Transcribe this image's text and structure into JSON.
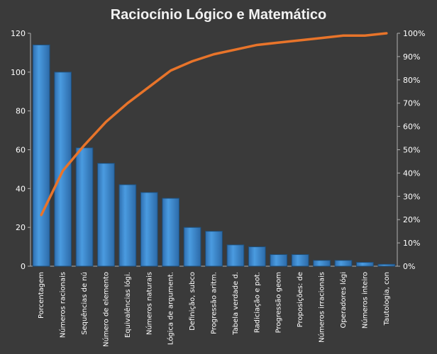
{
  "chart_data": {
    "type": "bar",
    "title": "Raciocínio  Lógico  e  Matemático",
    "categories": [
      "Porcentagem",
      "Números racionais",
      "Sequências de nú",
      "Número de elemento",
      "Equivalências lógi.",
      "Números naturais",
      "Lógica de argument.",
      "Definição, subco",
      "Progressão aritm.",
      "Tabela verdade d.",
      "Radiciação e pot.",
      "Progressão geom",
      "Proposições: de",
      "Números irracionais",
      "Operadores lógi",
      "Números inteiro",
      "Tautologia, con"
    ],
    "series": [
      {
        "values": [
          114,
          100,
          61,
          53,
          42,
          38,
          35,
          20,
          18,
          11,
          10,
          6,
          6,
          3,
          3,
          2,
          1
        ]
      },
      {
        "values": [
          22,
          41,
          52,
          62,
          70,
          77,
          84,
          88,
          91,
          93,
          95,
          96,
          97,
          98,
          99,
          99,
          100
        ],
        "axis": "secondary"
      }
    ],
    "ylim": [
      0,
      120
    ],
    "yticks": [
      "0",
      "20",
      "40",
      "60",
      "80",
      "100",
      "120"
    ],
    "y2lim": [
      0,
      100
    ],
    "y2ticks": [
      "0%",
      "10%",
      "20%",
      "30%",
      "40%",
      "50%",
      "60%",
      "70%",
      "80%",
      "90%",
      "100%"
    ],
    "grid": false,
    "legend": "none",
    "colors": {
      "bar": "#3f8fd6",
      "bar_edge": "#1f4f7a",
      "line": "#e8742a",
      "background": "#3a3a3a",
      "text": "#ffffff"
    }
  }
}
